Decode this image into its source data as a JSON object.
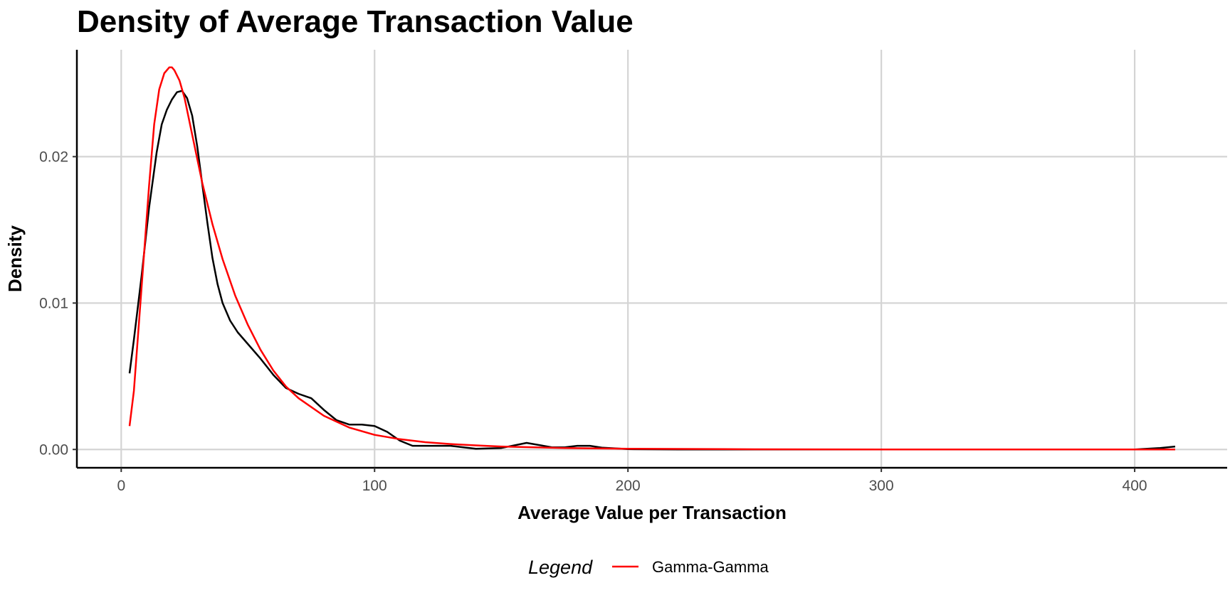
{
  "chart_data": {
    "type": "line",
    "title": "Density of Average Transaction Value",
    "xlabel": "Average Value per Transaction",
    "ylabel": "Density",
    "xlim": [
      -17.5,
      436.5
    ],
    "ylim": [
      -0.00125,
      0.0273
    ],
    "x_ticks": [
      0,
      100,
      200,
      300,
      400
    ],
    "x_tick_labels": [
      "0",
      "100",
      "200",
      "300",
      "400"
    ],
    "y_ticks": [
      0.0,
      0.01,
      0.02
    ],
    "y_tick_labels": [
      "0.00",
      "0.01",
      "0.02"
    ],
    "grid": true,
    "legend_position": "bottom",
    "legend_title": "Legend",
    "series": [
      {
        "color": "#000000",
        "x": [
          3.3,
          5,
          8,
          11,
          14,
          16,
          18,
          20,
          22,
          24,
          26,
          28,
          30,
          32,
          34,
          36,
          38,
          40,
          43,
          46,
          50,
          55,
          60,
          65,
          70,
          75,
          80,
          85,
          90,
          95,
          100,
          105,
          110,
          115,
          120,
          130,
          140,
          150,
          160,
          170,
          175,
          180,
          185,
          190,
          200,
          220,
          250,
          300,
          350,
          400,
          410,
          416
        ],
        "y": [
          0.0052,
          0.0075,
          0.0118,
          0.0165,
          0.0203,
          0.0222,
          0.0232,
          0.0239,
          0.0244,
          0.0245,
          0.024,
          0.0228,
          0.0207,
          0.0181,
          0.0155,
          0.0131,
          0.0113,
          0.01,
          0.0088,
          0.008,
          0.0072,
          0.0062,
          0.0051,
          0.0042,
          0.0038,
          0.0035,
          0.0027,
          0.002,
          0.0017,
          0.0017,
          0.0016,
          0.0012,
          0.0006,
          0.00025,
          0.00025,
          0.00025,
          5e-05,
          0.0001,
          0.00045,
          0.00015,
          0.00015,
          0.00025,
          0.00025,
          0.00012,
          2e-05,
          0.0,
          0.0,
          0.0,
          0.0,
          0.0,
          0.0001,
          0.0002
        ]
      },
      {
        "name": "Gamma-Gamma",
        "color": "#ff0000",
        "x": [
          3.3,
          5,
          8,
          11,
          13,
          15,
          17,
          19,
          20,
          21,
          23,
          25,
          28,
          32,
          36,
          40,
          45,
          50,
          55,
          60,
          65,
          70,
          80,
          90,
          100,
          110,
          120,
          130,
          140,
          150,
          175,
          200,
          250,
          300,
          350,
          400,
          416
        ],
        "y": [
          0.0016,
          0.004,
          0.011,
          0.018,
          0.0222,
          0.0246,
          0.0257,
          0.0261,
          0.0261,
          0.0259,
          0.0252,
          0.024,
          0.0215,
          0.0182,
          0.0154,
          0.013,
          0.0105,
          0.0085,
          0.0068,
          0.0054,
          0.0043,
          0.0035,
          0.0023,
          0.0015,
          0.001,
          0.0007,
          0.0005,
          0.00037,
          0.00028,
          0.0002,
          0.0001,
          5e-05,
          1e-05,
          0.0,
          0.0,
          0.0,
          0.0
        ]
      }
    ]
  }
}
